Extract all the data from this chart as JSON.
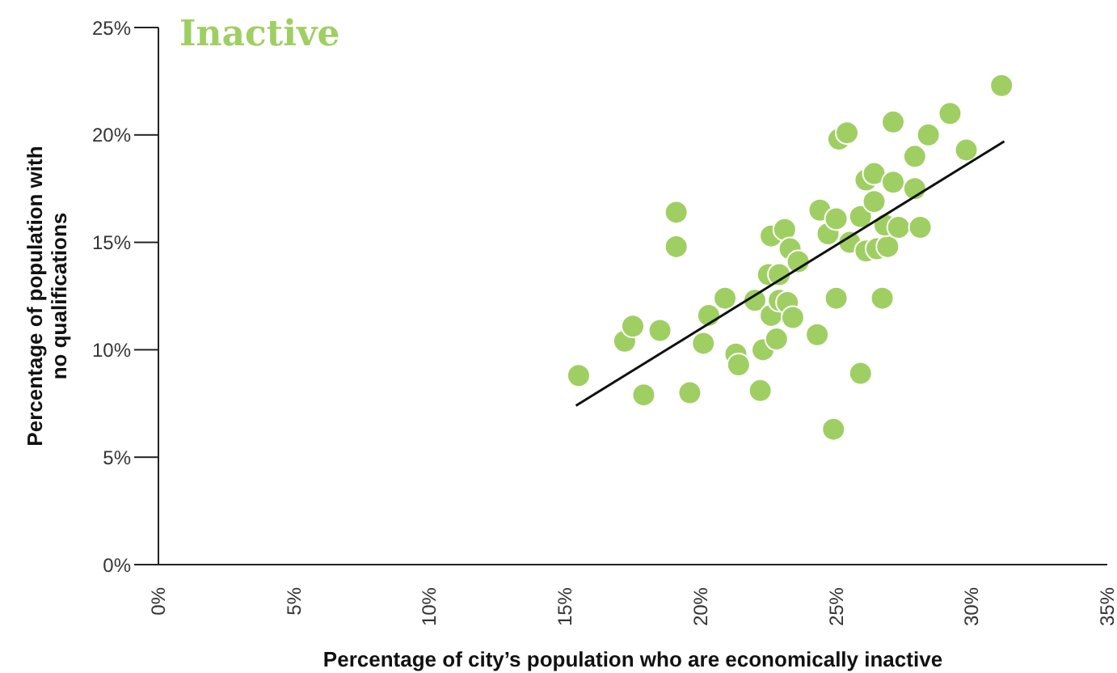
{
  "chart_data": {
    "type": "scatter",
    "title": "Inactive",
    "xlabel": "Percentage of city’s population who are economically inactive",
    "ylabel": "Percentage of population with no qualifications",
    "xlim": [
      0,
      35
    ],
    "ylim": [
      0,
      25
    ],
    "xticks": [
      {
        "value": 0,
        "label": "0%"
      },
      {
        "value": 5,
        "label": "5%"
      },
      {
        "value": 10,
        "label": "10%"
      },
      {
        "value": 15,
        "label": "15%"
      },
      {
        "value": 20,
        "label": "20%"
      },
      {
        "value": 25,
        "label": "25%"
      },
      {
        "value": 30,
        "label": "30%"
      },
      {
        "value": 35,
        "label": "35%"
      }
    ],
    "yticks": [
      {
        "value": 0,
        "label": "0%"
      },
      {
        "value": 5,
        "label": "5%"
      },
      {
        "value": 10,
        "label": "10%"
      },
      {
        "value": 15,
        "label": "15%"
      },
      {
        "value": 20,
        "label": "20%"
      },
      {
        "value": 25,
        "label": "25%"
      }
    ],
    "grid": false,
    "legend": false,
    "marker": "circle",
    "series": [
      {
        "color": "#9fcf63",
        "x": [
          15.5,
          17.2,
          17.5,
          17.9,
          18.5,
          19.1,
          19.1,
          19.6,
          20.1,
          20.3,
          20.9,
          21.3,
          21.4,
          22.0,
          22.2,
          22.3,
          22.6,
          22.8,
          22.5,
          22.9,
          22.6,
          23.1,
          23.3,
          23.6,
          22.9,
          23.2,
          23.4,
          24.3,
          24.4,
          24.7,
          25.0,
          25.0,
          24.9,
          25.1,
          25.4,
          25.5,
          25.9,
          25.9,
          26.1,
          26.1,
          26.4,
          26.4,
          26.7,
          26.5,
          26.9,
          26.8,
          27.1,
          27.3,
          27.1,
          27.9,
          27.9,
          28.1,
          28.4,
          29.2,
          29.8,
          31.1
        ],
        "values": [
          8.8,
          10.4,
          11.1,
          7.9,
          10.9,
          16.4,
          14.8,
          8.0,
          10.3,
          11.6,
          12.4,
          9.8,
          9.3,
          12.3,
          8.1,
          10.0,
          11.6,
          10.5,
          13.5,
          13.5,
          15.3,
          15.6,
          14.7,
          14.1,
          12.3,
          12.2,
          11.5,
          10.7,
          16.5,
          15.4,
          16.1,
          12.4,
          6.3,
          19.8,
          20.1,
          15.0,
          8.9,
          16.2,
          14.6,
          17.9,
          18.2,
          16.9,
          12.4,
          14.7,
          14.8,
          15.8,
          17.8,
          15.7,
          20.6,
          19.0,
          17.5,
          15.7,
          20.0,
          21.0,
          19.3,
          22.3
        ]
      },
      {
        "type": "line",
        "color": "#111111",
        "x": [
          15.4,
          31.2
        ],
        "values": [
          7.4,
          19.7
        ],
        "marker": "none"
      }
    ]
  }
}
